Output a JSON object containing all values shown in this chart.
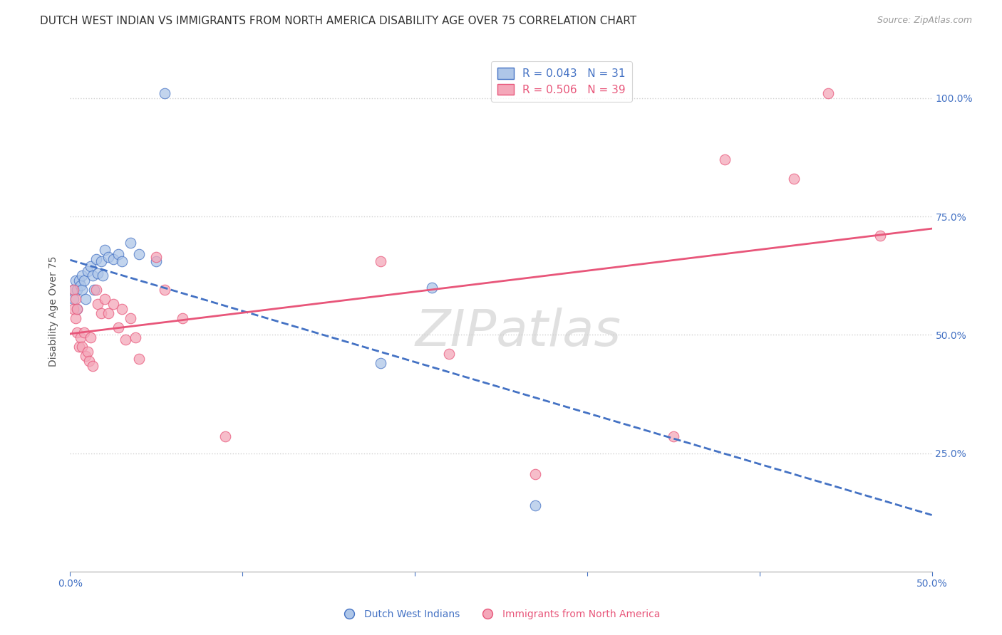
{
  "title": "DUTCH WEST INDIAN VS IMMIGRANTS FROM NORTH AMERICA DISABILITY AGE OVER 75 CORRELATION CHART",
  "source": "Source: ZipAtlas.com",
  "ylabel": "Disability Age Over 75",
  "legend_blue_label": "Dutch West Indians",
  "legend_pink_label": "Immigrants from North America",
  "legend_blue_text": "R = 0.043   N = 31",
  "legend_pink_text": "R = 0.506   N = 39",
  "watermark": "ZIPatlas",
  "xlim": [
    0.0,
    0.5
  ],
  "ylim": [
    0.0,
    1.1
  ],
  "blue_scatter_x": [
    0.002,
    0.002,
    0.003,
    0.004,
    0.004,
    0.005,
    0.006,
    0.007,
    0.007,
    0.008,
    0.009,
    0.01,
    0.012,
    0.013,
    0.014,
    0.015,
    0.016,
    0.018,
    0.019,
    0.02,
    0.022,
    0.025,
    0.028,
    0.03,
    0.035,
    0.04,
    0.05,
    0.055,
    0.18,
    0.21,
    0.27
  ],
  "blue_scatter_y": [
    0.595,
    0.575,
    0.615,
    0.595,
    0.555,
    0.615,
    0.605,
    0.625,
    0.595,
    0.615,
    0.575,
    0.635,
    0.645,
    0.625,
    0.595,
    0.66,
    0.63,
    0.655,
    0.625,
    0.68,
    0.665,
    0.66,
    0.67,
    0.655,
    0.695,
    0.67,
    0.655,
    1.01,
    0.44,
    0.6,
    0.14
  ],
  "pink_scatter_x": [
    0.002,
    0.002,
    0.003,
    0.003,
    0.004,
    0.004,
    0.005,
    0.006,
    0.007,
    0.008,
    0.009,
    0.01,
    0.011,
    0.012,
    0.013,
    0.015,
    0.016,
    0.018,
    0.02,
    0.022,
    0.025,
    0.028,
    0.03,
    0.032,
    0.035,
    0.038,
    0.04,
    0.05,
    0.055,
    0.065,
    0.09,
    0.18,
    0.22,
    0.27,
    0.35,
    0.38,
    0.42,
    0.44,
    0.47
  ],
  "pink_scatter_y": [
    0.595,
    0.555,
    0.575,
    0.535,
    0.555,
    0.505,
    0.475,
    0.495,
    0.475,
    0.505,
    0.455,
    0.465,
    0.445,
    0.495,
    0.435,
    0.595,
    0.565,
    0.545,
    0.575,
    0.545,
    0.565,
    0.515,
    0.555,
    0.49,
    0.535,
    0.495,
    0.45,
    0.665,
    0.595,
    0.535,
    0.285,
    0.655,
    0.46,
    0.205,
    0.285,
    0.87,
    0.83,
    1.01,
    0.71
  ],
  "blue_line_color": "#4472C4",
  "pink_line_color": "#E8567A",
  "blue_scatter_facecolor": "#AEC6E8",
  "pink_scatter_facecolor": "#F4A7B9",
  "grid_color": "#D0D0D0",
  "background_color": "#FFFFFF",
  "title_fontsize": 11,
  "axis_label_fontsize": 10,
  "tick_fontsize": 10,
  "legend_fontsize": 11,
  "watermark_fontsize": 52,
  "scatter_size": 110,
  "scatter_alpha": 0.75
}
